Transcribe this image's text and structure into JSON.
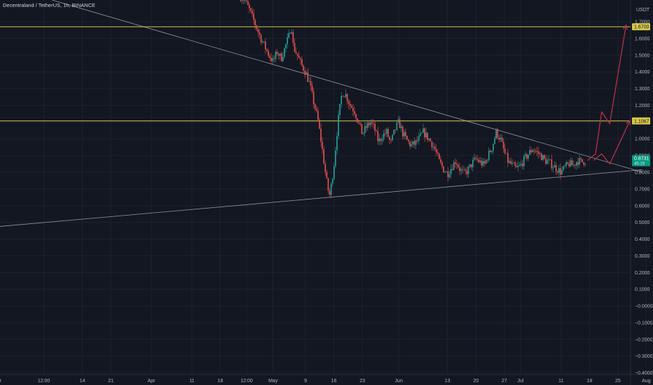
{
  "header": {
    "title": "Decentraland / TetherUS, 1h, BINANCE"
  },
  "chart_data": {
    "type": "candlestick",
    "currency": "USDT",
    "colors": {
      "background": "#131722",
      "up": "#26a69a",
      "down": "#ef5350",
      "grid": "#1e222d",
      "hline": "#d4c84a",
      "trendline": "#9598a1",
      "projection": "#c2334d",
      "price_tag": "#089981"
    },
    "y_axis": {
      "ylim": [
        -0.41,
        1.83
      ],
      "ticks": [
        "1.7000",
        "1.6000",
        "1.5000",
        "1.4000",
        "1.3000",
        "1.2000",
        "1.1000",
        "1.0000",
        "0.9000",
        "0.8000",
        "0.7000",
        "0.6000",
        "0.5000",
        "0.4000",
        "0.3000",
        "0.2000",
        "0.1000",
        "−0.0000",
        "−0.1000",
        "−0.2000",
        "−0.3000",
        "−0.4000"
      ]
    },
    "x_axis": {
      "range_days": [
        0,
        152
      ],
      "ticks": [
        {
          "label": "Mar",
          "t": 0
        },
        {
          "label": "12:00",
          "t": 11.5
        },
        {
          "label": "14",
          "t": 21
        },
        {
          "label": "21",
          "t": 28
        },
        {
          "label": "Apr",
          "t": 38
        },
        {
          "label": "11",
          "t": 48
        },
        {
          "label": "18",
          "t": 55
        },
        {
          "label": "12:00",
          "t": 61.5
        },
        {
          "label": "May",
          "t": 68
        },
        {
          "label": "9",
          "t": 76
        },
        {
          "label": "16",
          "t": 83
        },
        {
          "label": "23",
          "t": 90
        },
        {
          "label": "Jun",
          "t": 99
        },
        {
          "label": "13",
          "t": 111
        },
        {
          "label": "20",
          "t": 118
        },
        {
          "label": "27",
          "t": 125
        },
        {
          "label": "Jul",
          "t": 129
        },
        {
          "label": "11",
          "t": 139
        },
        {
          "label": "18",
          "t": 146
        },
        {
          "label": "25",
          "t": 153
        },
        {
          "label": "Aug",
          "t": 160
        }
      ]
    },
    "horizontal_levels": [
      {
        "price": 1.67,
        "label": "1.6700"
      },
      {
        "price": 1.1067,
        "label": "1.1067"
      }
    ],
    "current_price": {
      "price": 0.8731,
      "label": "0.8731",
      "sublabel": "45:19"
    },
    "trendlines": [
      {
        "name": "descending resistance",
        "points": [
          [
            13.5,
            1.83
          ],
          [
            159,
            0.8
          ]
        ]
      },
      {
        "name": "ascending support",
        "points": [
          [
            -2,
            0.47
          ],
          [
            159,
            0.815
          ]
        ]
      }
    ],
    "projection": [
      [
        145.5,
        0.87
      ],
      [
        147.5,
        0.91
      ],
      [
        149,
        1.16
      ],
      [
        151,
        1.09
      ],
      [
        155,
        1.68
      ]
    ],
    "projection_alt": [
      [
        147,
        0.87
      ],
      [
        149,
        0.91
      ],
      [
        151,
        0.85
      ],
      [
        156,
        1.11
      ]
    ],
    "price_path": [
      [
        60,
        1.85
      ],
      [
        61,
        1.83
      ],
      [
        62,
        1.78
      ],
      [
        63,
        1.72
      ],
      [
        64,
        1.66
      ],
      [
        65,
        1.6
      ],
      [
        66,
        1.55
      ],
      [
        67,
        1.5
      ],
      [
        68,
        1.46
      ],
      [
        69,
        1.52
      ],
      [
        70,
        1.48
      ],
      [
        71,
        1.55
      ],
      [
        72,
        1.62
      ],
      [
        72.5,
        1.69
      ],
      [
        73,
        1.55
      ],
      [
        74,
        1.5
      ],
      [
        75,
        1.44
      ],
      [
        76,
        1.4
      ],
      [
        77,
        1.33
      ],
      [
        78,
        1.22
      ],
      [
        79,
        1.12
      ],
      [
        80,
        0.96
      ],
      [
        81,
        0.78
      ],
      [
        81.5,
        0.7
      ],
      [
        82,
        0.66
      ],
      [
        83,
        0.84
      ],
      [
        84,
        1.1
      ],
      [
        85,
        1.28
      ],
      [
        86,
        1.26
      ],
      [
        87,
        1.2
      ],
      [
        88,
        1.17
      ],
      [
        89,
        1.1
      ],
      [
        90,
        1.03
      ],
      [
        91,
        1.07
      ],
      [
        92,
        1.1
      ],
      [
        93,
        1.06
      ],
      [
        94,
        0.98
      ],
      [
        95,
        1.02
      ],
      [
        96,
        1.04
      ],
      [
        97,
        0.97
      ],
      [
        98,
        1.05
      ],
      [
        99,
        1.1
      ],
      [
        100,
        1.03
      ],
      [
        101,
        0.99
      ],
      [
        102,
        0.96
      ],
      [
        103,
        0.97
      ],
      [
        104,
        1.0
      ],
      [
        105,
        1.04
      ],
      [
        106,
        1.01
      ],
      [
        107,
        0.98
      ],
      [
        108,
        0.93
      ],
      [
        109,
        0.86
      ],
      [
        110,
        0.82
      ],
      [
        111,
        0.79
      ],
      [
        112,
        0.83
      ],
      [
        113,
        0.87
      ],
      [
        114,
        0.82
      ],
      [
        115,
        0.79
      ],
      [
        116,
        0.81
      ],
      [
        117,
        0.85
      ],
      [
        118,
        0.88
      ],
      [
        119,
        0.86
      ],
      [
        120,
        0.84
      ],
      [
        121,
        0.9
      ],
      [
        122,
        0.95
      ],
      [
        123,
        1.04
      ],
      [
        124,
        1.0
      ],
      [
        125,
        0.92
      ],
      [
        126,
        0.86
      ],
      [
        127,
        0.84
      ],
      [
        128,
        0.82
      ],
      [
        129,
        0.84
      ],
      [
        130,
        0.88
      ],
      [
        131,
        0.91
      ],
      [
        132,
        0.94
      ],
      [
        133,
        0.92
      ],
      [
        134,
        0.9
      ],
      [
        135,
        0.87
      ],
      [
        136,
        0.86
      ],
      [
        137,
        0.84
      ],
      [
        138,
        0.82
      ],
      [
        139,
        0.8
      ],
      [
        140,
        0.83
      ],
      [
        141,
        0.85
      ],
      [
        142,
        0.84
      ],
      [
        143,
        0.87
      ],
      [
        144,
        0.86
      ],
      [
        145,
        0.87
      ]
    ]
  }
}
